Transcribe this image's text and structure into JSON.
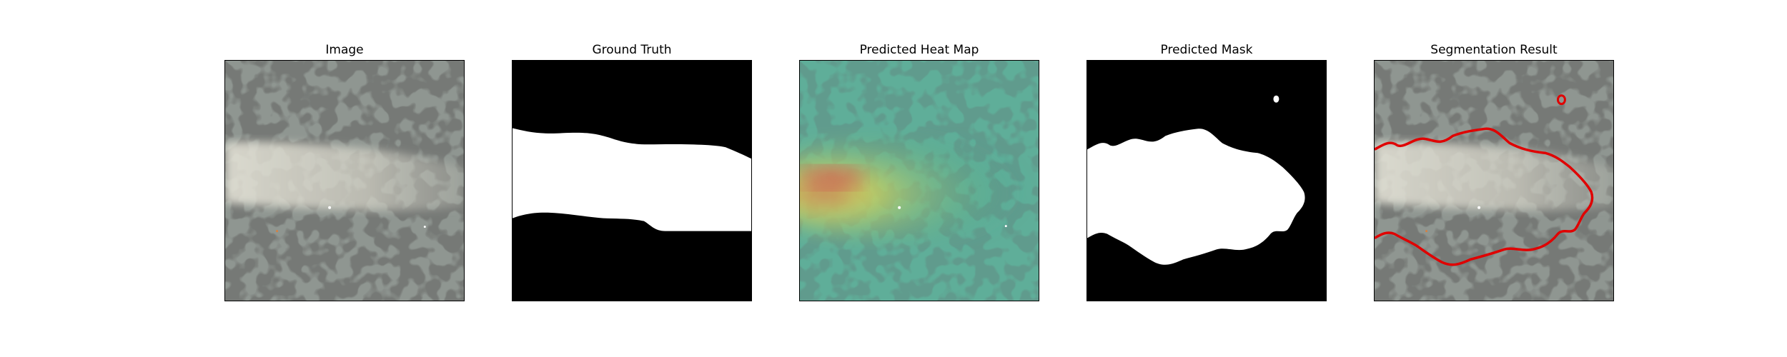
{
  "panels": [
    {
      "id": "image",
      "title": "Image"
    },
    {
      "id": "ground-truth",
      "title": "Ground Truth"
    },
    {
      "id": "heatmap",
      "title": "Predicted Heat Map"
    },
    {
      "id": "mask",
      "title": "Predicted Mask"
    },
    {
      "id": "segmentation",
      "title": "Segmentation Result"
    }
  ],
  "colors": {
    "background": "#ffffff",
    "mask_foreground": "#ffffff",
    "mask_background": "#000000",
    "texture_base": "#8f9691",
    "texture_spots": "#2f312f",
    "defect_band": "#e4e2d6",
    "heat_cold": "#2f9a88",
    "heat_mid": "#d6d55a",
    "heat_hot": "#d05a52",
    "contour": "#e00000"
  }
}
